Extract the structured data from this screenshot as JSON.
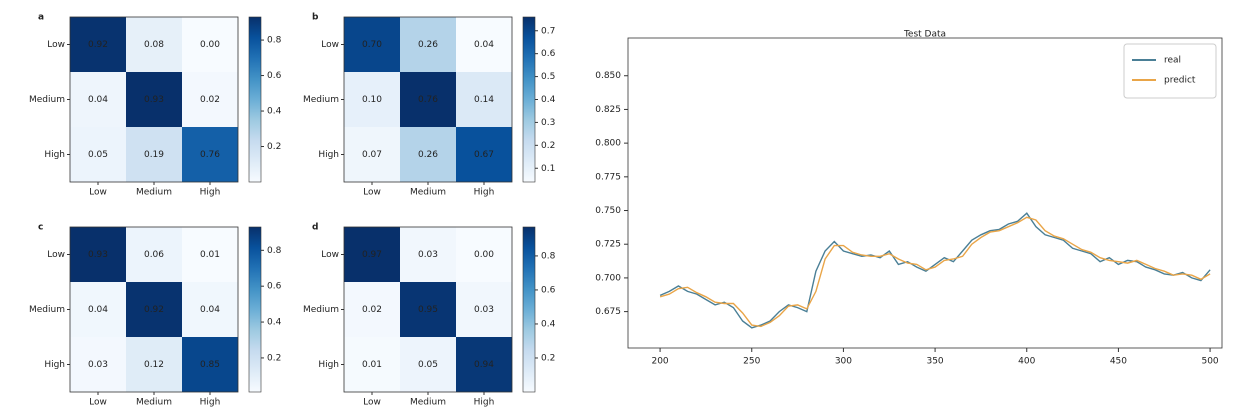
{
  "chart_data": [
    {
      "type": "heatmap",
      "panel": "a",
      "cmap": "Blues",
      "categories": [
        "Low",
        "Medium",
        "High"
      ],
      "y_categories": [
        "Low",
        "Medium",
        "High"
      ],
      "values": [
        [
          0.92,
          0.08,
          0.0
        ],
        [
          0.04,
          0.93,
          0.02
        ],
        [
          0.05,
          0.19,
          0.76
        ]
      ],
      "value_labels": [
        [
          "0.92",
          "0.08",
          "0.00"
        ],
        [
          "0.04",
          "0.93",
          "0.02"
        ],
        [
          "0.05",
          "0.19",
          "0.76"
        ]
      ],
      "clim": [
        0.0,
        0.93
      ],
      "cticks": [
        0.2,
        0.4,
        0.6,
        0.8
      ]
    },
    {
      "type": "heatmap",
      "panel": "b",
      "cmap": "Blues",
      "categories": [
        "Low",
        "Medium",
        "High"
      ],
      "y_categories": [
        "Low",
        "Medium",
        "High"
      ],
      "values": [
        [
          0.7,
          0.26,
          0.04
        ],
        [
          0.1,
          0.76,
          0.14
        ],
        [
          0.07,
          0.26,
          0.67
        ]
      ],
      "value_labels": [
        [
          "0.70",
          "0.26",
          "0.04"
        ],
        [
          "0.10",
          "0.76",
          "0.14"
        ],
        [
          "0.07",
          "0.26",
          "0.67"
        ]
      ],
      "clim": [
        0.04,
        0.76
      ],
      "cticks": [
        0.1,
        0.2,
        0.3,
        0.4,
        0.5,
        0.6,
        0.7
      ]
    },
    {
      "type": "heatmap",
      "panel": "c",
      "cmap": "Blues",
      "categories": [
        "Low",
        "Medium",
        "High"
      ],
      "y_categories": [
        "Low",
        "Medium",
        "High"
      ],
      "values": [
        [
          0.93,
          0.06,
          0.01
        ],
        [
          0.04,
          0.92,
          0.04
        ],
        [
          0.03,
          0.12,
          0.85
        ]
      ],
      "value_labels": [
        [
          "0.93",
          "0.06",
          "0.01"
        ],
        [
          "0.04",
          "0.92",
          "0.04"
        ],
        [
          "0.03",
          "0.12",
          "0.85"
        ]
      ],
      "clim": [
        0.01,
        0.93
      ],
      "cticks": [
        0.2,
        0.4,
        0.6,
        0.8
      ]
    },
    {
      "type": "heatmap",
      "panel": "d",
      "cmap": "Blues",
      "categories": [
        "Low",
        "Medium",
        "High"
      ],
      "y_categories": [
        "Low",
        "Medium",
        "High"
      ],
      "values": [
        [
          0.97,
          0.03,
          0.0
        ],
        [
          0.02,
          0.95,
          0.03
        ],
        [
          0.01,
          0.05,
          0.94
        ]
      ],
      "value_labels": [
        [
          "0.97",
          "0.03",
          "0.00"
        ],
        [
          "0.02",
          "0.95",
          "0.03"
        ],
        [
          "0.01",
          "0.05",
          "0.94"
        ]
      ],
      "clim": [
        0.0,
        0.97
      ],
      "cticks": [
        0.2,
        0.4,
        0.6,
        0.8
      ]
    },
    {
      "type": "line",
      "title": "Test Data",
      "legend": "upper right",
      "x": [
        200,
        205,
        210,
        215,
        220,
        225,
        230,
        235,
        240,
        245,
        250,
        255,
        260,
        265,
        270,
        275,
        280,
        285,
        290,
        295,
        300,
        305,
        310,
        315,
        320,
        325,
        330,
        335,
        340,
        345,
        350,
        355,
        360,
        365,
        370,
        375,
        380,
        385,
        390,
        395,
        400,
        405,
        410,
        415,
        420,
        425,
        430,
        435,
        440,
        445,
        450,
        455,
        460,
        465,
        470,
        475,
        480,
        485,
        490,
        495,
        500
      ],
      "series": [
        {
          "name": "real",
          "color": "#4a7f96",
          "values": [
            0.687,
            0.69,
            0.694,
            0.69,
            0.688,
            0.684,
            0.68,
            0.682,
            0.678,
            0.668,
            0.663,
            0.665,
            0.668,
            0.675,
            0.68,
            0.678,
            0.675,
            0.705,
            0.72,
            0.727,
            0.72,
            0.718,
            0.716,
            0.717,
            0.715,
            0.72,
            0.71,
            0.712,
            0.708,
            0.705,
            0.71,
            0.715,
            0.712,
            0.72,
            0.728,
            0.732,
            0.735,
            0.736,
            0.74,
            0.742,
            0.748,
            0.738,
            0.732,
            0.73,
            0.728,
            0.722,
            0.72,
            0.718,
            0.712,
            0.715,
            0.71,
            0.713,
            0.712,
            0.708,
            0.706,
            0.703,
            0.702,
            0.704,
            0.7,
            0.698,
            0.706
          ]
        },
        {
          "name": "predict",
          "color": "#e9a548",
          "values": [
            0.686,
            0.688,
            0.692,
            0.693,
            0.689,
            0.686,
            0.682,
            0.681,
            0.681,
            0.674,
            0.665,
            0.664,
            0.667,
            0.672,
            0.679,
            0.68,
            0.677,
            0.69,
            0.714,
            0.724,
            0.724,
            0.719,
            0.717,
            0.716,
            0.716,
            0.718,
            0.714,
            0.711,
            0.71,
            0.706,
            0.708,
            0.713,
            0.714,
            0.716,
            0.725,
            0.73,
            0.734,
            0.735,
            0.738,
            0.741,
            0.745,
            0.743,
            0.735,
            0.731,
            0.729,
            0.725,
            0.721,
            0.719,
            0.715,
            0.713,
            0.712,
            0.711,
            0.713,
            0.71,
            0.707,
            0.705,
            0.702,
            0.703,
            0.702,
            0.699,
            0.703
          ]
        }
      ],
      "xlim": [
        182.5,
        506.5
      ],
      "xticks": [
        200,
        250,
        300,
        350,
        400,
        450,
        500
      ],
      "ylim": [
        0.648,
        0.878
      ],
      "yticks": [
        0.675,
        {
          "value": 0.7,
          "label": "0.700"
        },
        0.725,
        {
          "value": 0.75,
          "label": "0.750"
        },
        0.775,
        {
          "value": 0.8,
          "label": "0.800"
        },
        0.825,
        {
          "value": 0.85,
          "label": "0.850"
        }
      ]
    }
  ]
}
